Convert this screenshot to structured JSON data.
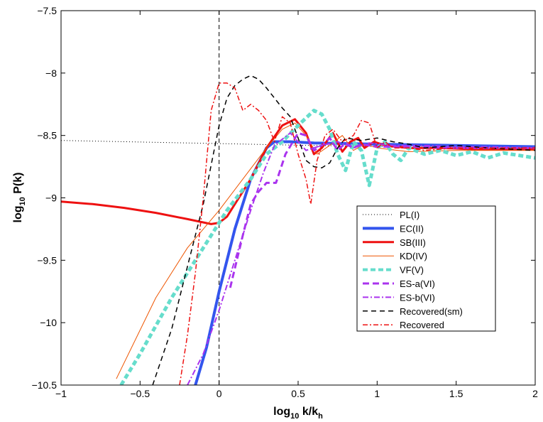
{
  "chart_data": {
    "type": "line",
    "title": "",
    "xlabel": {
      "base": "log",
      "sub": "10",
      "main": " k/k",
      "sub2": "h"
    },
    "ylabel": {
      "base": "log",
      "sub": "10",
      "main": " P(k)"
    },
    "xlim": [
      -1,
      2
    ],
    "ylim": [
      -10.5,
      -7.5
    ],
    "xticks": [
      -1,
      -0.5,
      0,
      0.5,
      1,
      1.5,
      2
    ],
    "xtick_labels": [
      "−1",
      "−0.5",
      "0",
      "0.5",
      "1",
      "1.5",
      "2"
    ],
    "yticks": [
      -10.5,
      -10,
      -9.5,
      -9,
      -8.5,
      -8,
      -7.5
    ],
    "ytick_labels": [
      "−10.5",
      "−10",
      "−9.5",
      "−9",
      "−8.5",
      "−8",
      "−7.5"
    ],
    "vertical_marker": {
      "x": 0,
      "style": "dashed",
      "color": "#000000"
    },
    "legend_position": "lower-right",
    "series": [
      {
        "name": "PL(I)",
        "color": "#000000",
        "width": 1,
        "dash": "1,3",
        "x": [
          -1,
          0,
          0.5,
          1,
          1.5,
          2
        ],
        "y": [
          -8.54,
          -8.565,
          -8.578,
          -8.588,
          -8.596,
          -8.6
        ]
      },
      {
        "name": "EC(II)",
        "color": "#3355ee",
        "width": 4,
        "dash": "",
        "x": [
          -0.15,
          -0.08,
          0,
          0.1,
          0.2,
          0.3,
          0.35,
          0.45,
          0.6,
          1,
          1.5,
          2
        ],
        "y": [
          -10.5,
          -10.2,
          -9.75,
          -9.25,
          -8.85,
          -8.6,
          -8.55,
          -8.55,
          -8.56,
          -8.57,
          -8.58,
          -8.59
        ]
      },
      {
        "name": "SB(III)",
        "color": "#ee1111",
        "width": 3,
        "dash": "",
        "x": [
          -1,
          -0.8,
          -0.6,
          -0.4,
          -0.2,
          -0.05,
          0,
          0.05,
          0.1,
          0.2,
          0.3,
          0.4,
          0.48,
          0.55,
          0.6,
          0.65,
          0.72,
          0.78,
          0.83,
          0.88,
          0.92,
          0.98,
          1.05,
          1.2,
          1.4,
          1.6,
          1.8,
          2
        ],
        "y": [
          -9.03,
          -9.05,
          -9.08,
          -9.12,
          -9.17,
          -9.21,
          -9.2,
          -9.15,
          -9.05,
          -8.85,
          -8.6,
          -8.42,
          -8.37,
          -8.48,
          -8.65,
          -8.6,
          -8.48,
          -8.63,
          -8.55,
          -8.52,
          -8.6,
          -8.55,
          -8.58,
          -8.6,
          -8.6,
          -8.61,
          -8.61,
          -8.61
        ]
      },
      {
        "name": "KD(IV)",
        "color": "#ee5500",
        "width": 1,
        "dash": "",
        "x": [
          -0.65,
          -0.4,
          -0.2,
          0,
          0.15,
          0.3,
          0.4,
          0.48,
          0.55,
          0.62,
          0.7,
          0.78,
          0.85,
          0.92,
          1,
          1.2,
          1.5,
          2
        ],
        "y": [
          -10.45,
          -9.8,
          -9.4,
          -9.1,
          -8.85,
          -8.6,
          -8.45,
          -8.4,
          -8.5,
          -8.65,
          -8.58,
          -8.5,
          -8.62,
          -8.57,
          -8.6,
          -8.63,
          -8.62,
          -8.62
        ]
      },
      {
        "name": "VF(V)",
        "color": "#66ddcc",
        "width": 5,
        "dash": "7,4",
        "x": [
          -0.62,
          -0.5,
          -0.3,
          -0.1,
          0.05,
          0.2,
          0.3,
          0.4,
          0.5,
          0.6,
          0.65,
          0.7,
          0.75,
          0.8,
          0.85,
          0.9,
          0.95,
          1,
          1.05,
          1.1,
          1.15,
          1.2,
          1.3,
          1.4,
          1.5,
          1.6,
          1.7,
          1.8,
          1.9,
          2
        ],
        "y": [
          -10.5,
          -10.25,
          -9.8,
          -9.4,
          -9.1,
          -8.85,
          -8.65,
          -8.55,
          -8.42,
          -8.3,
          -8.33,
          -8.45,
          -8.65,
          -8.78,
          -8.55,
          -8.62,
          -8.9,
          -8.6,
          -8.55,
          -8.65,
          -8.7,
          -8.6,
          -8.65,
          -8.62,
          -8.66,
          -8.63,
          -8.68,
          -8.64,
          -8.66,
          -8.68
        ]
      },
      {
        "name": "ES-a(VI)",
        "color": "#aa33ee",
        "width": 3,
        "dash": "9,5",
        "x": [
          0.07,
          0.15,
          0.2,
          0.25,
          0.3,
          0.36,
          0.42,
          0.5,
          0.55,
          0.6,
          0.65,
          0.7,
          0.75,
          0.8,
          0.85,
          0.9,
          1,
          1.2,
          1.5,
          2
        ],
        "y": [
          -9.72,
          -9.3,
          -9.05,
          -8.95,
          -8.88,
          -8.88,
          -8.65,
          -8.48,
          -8.5,
          -8.62,
          -8.58,
          -8.52,
          -8.62,
          -8.56,
          -8.6,
          -8.57,
          -8.59,
          -8.59,
          -8.6,
          -8.6
        ]
      },
      {
        "name": "ES-b(VI)",
        "color": "#aa33ee",
        "width": 2,
        "dash": "8,3,2,3",
        "x": [
          -0.2,
          -0.1,
          0,
          0.1,
          0.2,
          0.28,
          0.35,
          0.45,
          0.55,
          0.65,
          0.75,
          0.85,
          0.95,
          1.1,
          1.3,
          1.5,
          1.7,
          2
        ],
        "y": [
          -10.5,
          -10.25,
          -9.9,
          -9.5,
          -9.1,
          -8.8,
          -8.58,
          -8.48,
          -8.62,
          -8.58,
          -8.55,
          -8.6,
          -8.56,
          -8.58,
          -8.58,
          -8.59,
          -8.59,
          -8.6
        ]
      },
      {
        "name": "Recovered(sm)",
        "color": "#000000",
        "width": 1.5,
        "dash": "7,5",
        "x": [
          -0.42,
          -0.3,
          -0.2,
          -0.1,
          0,
          0.05,
          0.1,
          0.15,
          0.2,
          0.25,
          0.3,
          0.35,
          0.4,
          0.45,
          0.5,
          0.55,
          0.6,
          0.65,
          0.7,
          0.75,
          0.8,
          0.9,
          1,
          1.1,
          1.2,
          1.3,
          1.5,
          1.7,
          2
        ],
        "y": [
          -10.5,
          -10.05,
          -9.55,
          -9.05,
          -8.42,
          -8.2,
          -8.1,
          -8.05,
          -8.02,
          -8.05,
          -8.12,
          -8.2,
          -8.28,
          -8.35,
          -8.52,
          -8.7,
          -8.75,
          -8.76,
          -8.72,
          -8.6,
          -8.52,
          -8.54,
          -8.52,
          -8.55,
          -8.57,
          -8.6,
          -8.58,
          -8.6,
          -8.62
        ]
      },
      {
        "name": "Recovered",
        "color": "#ee1111",
        "width": 1.5,
        "dash": "7,3,2,3",
        "x": [
          -0.25,
          -0.2,
          -0.15,
          -0.1,
          -0.05,
          0,
          0.05,
          0.1,
          0.15,
          0.2,
          0.25,
          0.3,
          0.35,
          0.4,
          0.45,
          0.5,
          0.55,
          0.58,
          0.62,
          0.67,
          0.72,
          0.78,
          0.85,
          0.9,
          0.95,
          1,
          1.05,
          1.1,
          1.2,
          1.3,
          1.5,
          1.7,
          2
        ],
        "y": [
          -10.5,
          -10.1,
          -9.6,
          -9.0,
          -8.3,
          -8.08,
          -8.08,
          -8.12,
          -8.3,
          -8.25,
          -8.3,
          -8.38,
          -8.55,
          -8.35,
          -8.4,
          -8.65,
          -8.85,
          -9.05,
          -8.7,
          -8.5,
          -8.45,
          -8.55,
          -8.5,
          -8.38,
          -8.4,
          -8.6,
          -8.55,
          -8.6,
          -8.6,
          -8.62,
          -8.6,
          -8.6,
          -8.6
        ]
      }
    ]
  }
}
